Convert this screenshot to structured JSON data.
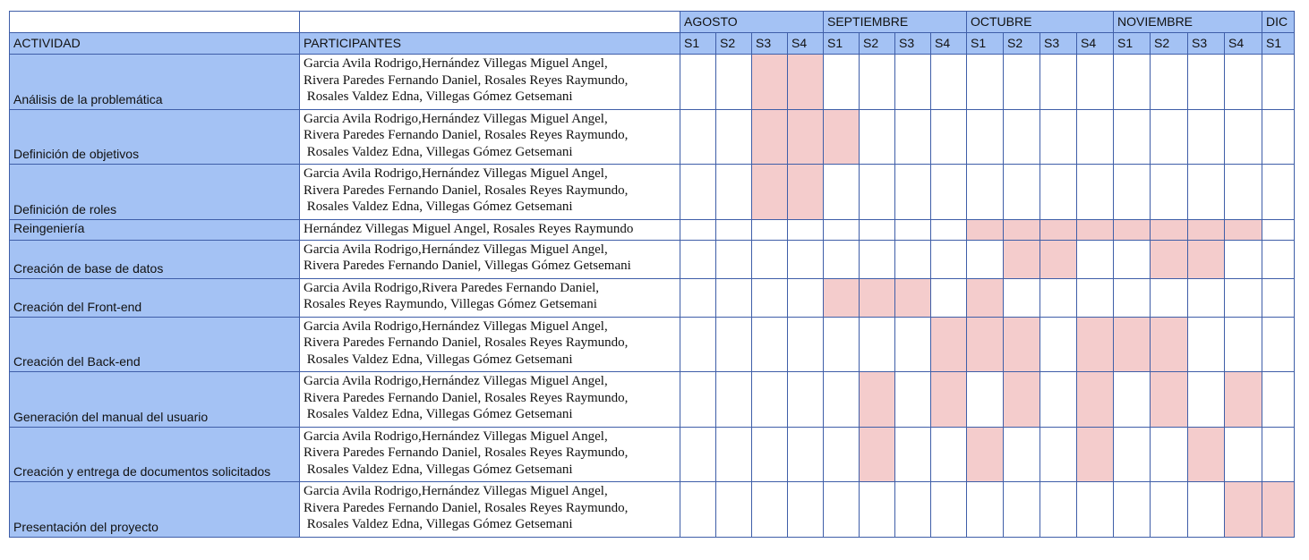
{
  "header": {
    "activity_label": "ACTIVIDAD",
    "participants_label": "PARTICIPANTES",
    "months": [
      {
        "name": "AGOSTO",
        "weeks": [
          "S1",
          "S2",
          "S3",
          "S4"
        ]
      },
      {
        "name": "SEPTIEMBRE",
        "weeks": [
          "S1",
          "S2",
          "S3",
          "S4"
        ]
      },
      {
        "name": "OCTUBRE",
        "weeks": [
          "S1",
          "S2",
          "S3",
          "S4"
        ]
      },
      {
        "name": "NOVIEMBRE",
        "weeks": [
          "S1",
          "S2",
          "S3",
          "S4"
        ]
      },
      {
        "name": "DIC",
        "weeks": [
          "S1"
        ]
      }
    ]
  },
  "colors": {
    "header_blue": "#a4c2f4",
    "active_cell": "#f4cccc",
    "grid_line": "#3f5ea8"
  },
  "rows": [
    {
      "activity": "Análisis de la problemática",
      "participants": [
        "Garcia Avila Rodrigo,Hernández Villegas Miguel Angel,",
        "Rivera Paredes Fernando Daniel, Rosales Reyes Raymundo,",
        " Rosales Valdez Edna, Villegas Gómez Getsemani"
      ],
      "active_weeks": [
        2,
        3
      ]
    },
    {
      "activity": "Definición de objetivos",
      "participants": [
        "Garcia Avila Rodrigo,Hernández Villegas Miguel Angel,",
        "Rivera Paredes Fernando Daniel, Rosales Reyes Raymundo,",
        " Rosales Valdez Edna, Villegas Gómez Getsemani"
      ],
      "active_weeks": [
        2,
        3,
        4
      ]
    },
    {
      "activity": "Definición de roles",
      "participants": [
        "Garcia Avila Rodrigo,Hernández Villegas Miguel Angel,",
        "Rivera Paredes Fernando Daniel, Rosales Reyes Raymundo,",
        " Rosales Valdez Edna, Villegas Gómez Getsemani"
      ],
      "active_weeks": [
        2,
        3
      ]
    },
    {
      "activity": "Reingeniería",
      "participants": [
        "Hernández Villegas Miguel Angel, Rosales Reyes Raymundo"
      ],
      "active_weeks": [
        8,
        9,
        10,
        11,
        12,
        13,
        14,
        15
      ]
    },
    {
      "activity": "Creación de base de datos",
      "participants": [
        "Garcia Avila Rodrigo,Hernández Villegas Miguel Angel,",
        "Rivera Paredes Fernando Daniel, Villegas Gómez Getsemani"
      ],
      "active_weeks": [
        9,
        10,
        13,
        14
      ]
    },
    {
      "activity": "Creación del Front-end",
      "participants": [
        "Garcia Avila Rodrigo,Rivera Paredes Fernando Daniel,",
        "Rosales Reyes Raymundo, Villegas Gómez Getsemani"
      ],
      "active_weeks": [
        4,
        5,
        6,
        8
      ]
    },
    {
      "activity": "Creación del Back-end",
      "participants": [
        "Garcia Avila Rodrigo,Hernández Villegas Miguel Angel,",
        "Rivera Paredes Fernando Daniel, Rosales Reyes Raymundo,",
        " Rosales Valdez Edna, Villegas Gómez Getsemani"
      ],
      "active_weeks": [
        7,
        8,
        9,
        11,
        12,
        13
      ]
    },
    {
      "activity": "Generación del manual del usuario",
      "participants": [
        "Garcia Avila Rodrigo,Hernández Villegas Miguel Angel,",
        "Rivera Paredes Fernando Daniel, Rosales Reyes Raymundo,",
        " Rosales Valdez Edna, Villegas Gómez Getsemani"
      ],
      "active_weeks": [
        5,
        7,
        9,
        11,
        13,
        15
      ]
    },
    {
      "activity": "Creación y entrega de documentos solicitados",
      "participants": [
        "Garcia Avila Rodrigo,Hernández Villegas Miguel Angel,",
        "Rivera Paredes Fernando Daniel, Rosales Reyes Raymundo,",
        " Rosales Valdez Edna, Villegas Gómez Getsemani"
      ],
      "active_weeks": [
        5,
        8,
        11,
        14
      ]
    },
    {
      "activity": "Presentación del proyecto",
      "participants": [
        "Garcia Avila Rodrigo,Hernández Villegas Miguel Angel,",
        "Rivera Paredes Fernando Daniel, Rosales Reyes Raymundo,",
        " Rosales Valdez Edna, Villegas Gómez Getsemani"
      ],
      "active_weeks": [
        15,
        16
      ]
    }
  ]
}
